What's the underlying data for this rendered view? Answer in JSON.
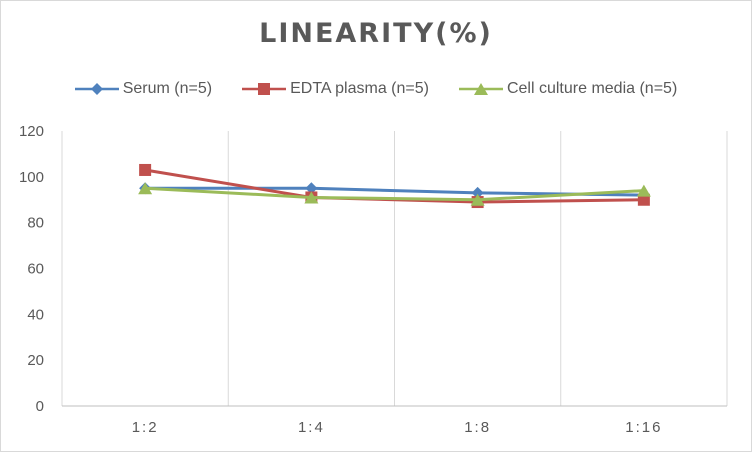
{
  "chart_data": {
    "type": "line",
    "title": "LINEARITY(%)",
    "xlabel": "",
    "ylabel": "",
    "categories": [
      "1:2",
      "1:4",
      "1:8",
      "1:16"
    ],
    "ylim": [
      0,
      120
    ],
    "yticks": [
      0,
      20,
      40,
      60,
      80,
      100,
      120
    ],
    "grid": "vertical",
    "legend_position": "top",
    "series": [
      {
        "name": "Serum (n=5)",
        "values": [
          95,
          95,
          93,
          92
        ],
        "color": "#4f81bd",
        "marker": "diamond"
      },
      {
        "name": "EDTA plasma (n=5)",
        "values": [
          103,
          91,
          89,
          90
        ],
        "color": "#c0504d",
        "marker": "square"
      },
      {
        "name": "Cell culture media (n=5)",
        "values": [
          95,
          91,
          90,
          94
        ],
        "color": "#9bbb59",
        "marker": "triangle"
      }
    ]
  }
}
